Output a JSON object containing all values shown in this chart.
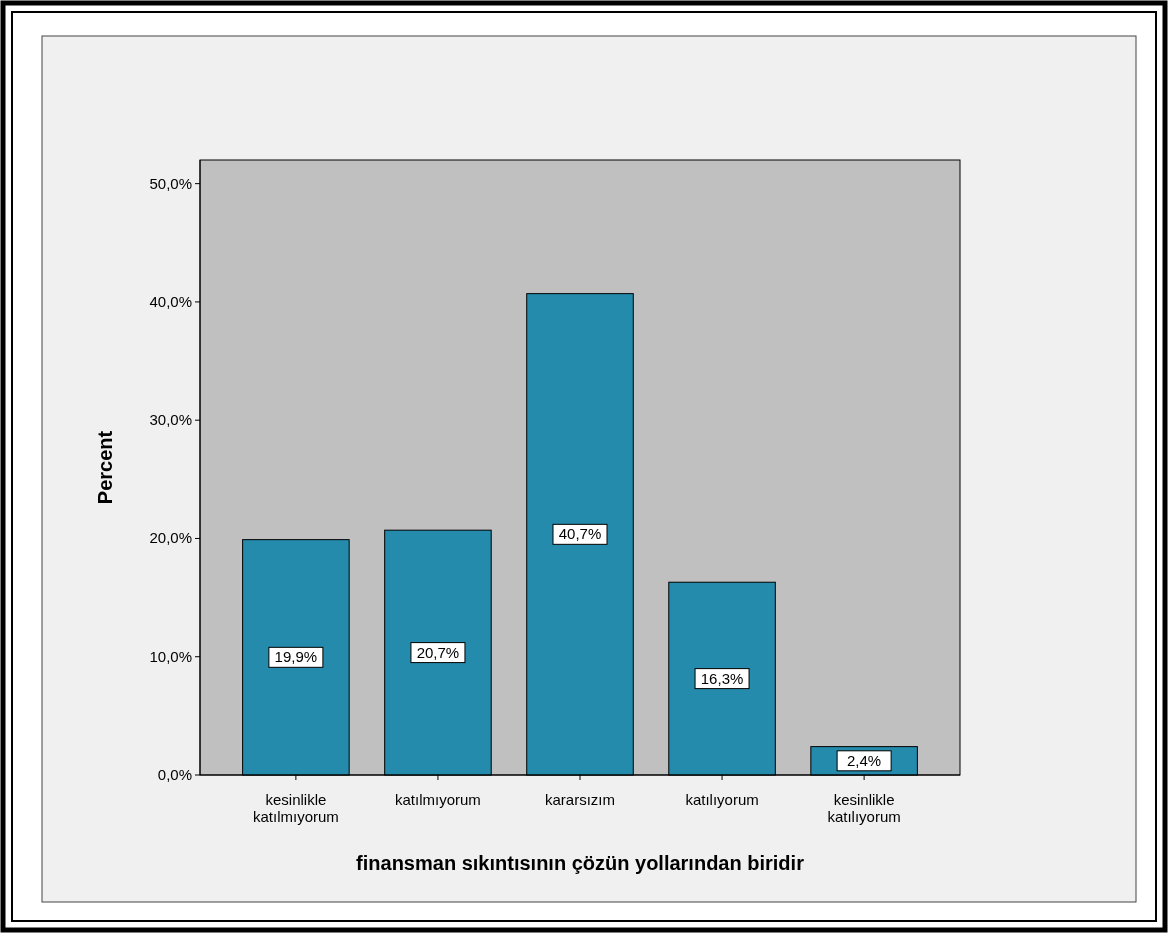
{
  "chart_data": {
    "type": "bar",
    "xlabel": "finansman sıkıntısının çözün yollarından biridir",
    "ylabel": "Percent",
    "categories": [
      "kesinlikle katılmıyorum",
      "katılmıyorum",
      "kararsızım",
      "katılıyorum",
      "kesinlikle katılıyorum"
    ],
    "values": [
      19.9,
      20.7,
      40.7,
      16.3,
      2.4
    ],
    "value_labels": [
      "19,9%",
      "20,7%",
      "40,7%",
      "16,3%",
      "2,4%"
    ],
    "color": "#248bac",
    "ylim": [
      0,
      52
    ],
    "yticks": [
      {
        "value": 0,
        "label": "0,0%"
      },
      {
        "value": 10,
        "label": "10,0%"
      },
      {
        "value": 20,
        "label": "20,0%"
      },
      {
        "value": 30,
        "label": "30,0%"
      },
      {
        "value": 40,
        "label": "40,0%"
      },
      {
        "value": 50,
        "label": "50,0%"
      }
    ],
    "grid": false
  }
}
